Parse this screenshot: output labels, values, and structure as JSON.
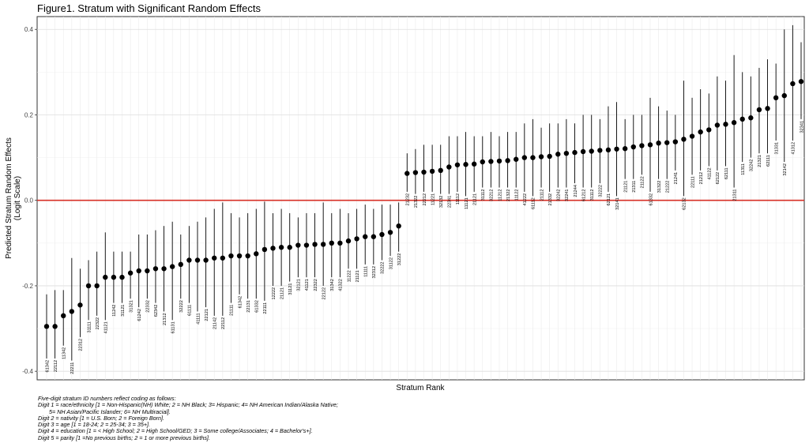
{
  "title": "Figure1. Stratum with Significant Random Effects",
  "caption": [
    "Five-digit stratum ID numbers reflect coding as follows:",
    "Digit 1 = race/ethnicity [1 = Non-Hispanic(NH) White; 2 = NH Black; 3= Hispanic; 4= NH American Indian/Alaska Native;",
    "5= NH Asian/Pacific Islander; 6= NH Multiracial].",
    "Digit 2 = nativity [1 = U.S. Born; 2 = Foreign Born].",
    "Digit 3 = age [1 = 18-24; 2 = 25-34; 3 = 35+].",
    "Digit 4 = education [1 = < High School; 2 = High School/GED; 3 = Some college/Associates; 4 = Bachelor's+].",
    "Digit 5 = parity [1 =No previous births; 2 = 1 or more previous births]."
  ],
  "chart_data": {
    "type": "scatter",
    "title": "Figure1. Stratum with Significant Random Effects",
    "xlabel": "Stratum Rank",
    "ylabel": "Predicted Stratum Random Effects (Logit Scale)",
    "ylabel_lines": [
      "Predicted Stratum Random Effects",
      "(Logit Scale)"
    ],
    "ylim": [
      -0.42,
      0.43
    ],
    "yticks": [
      -0.4,
      -0.2,
      0.0,
      0.2,
      0.4
    ],
    "ytick_labels": [
      "-0.4",
      "-0.2",
      "0.0",
      "0.2",
      "0.4"
    ],
    "grid": true,
    "reference_line": {
      "y": 0,
      "color": "#d73027"
    },
    "point_color": "#000000",
    "points": [
      {
        "id": "61342",
        "y": -0.295,
        "lo": -0.37,
        "hi": -0.22
      },
      {
        "id": "22112",
        "y": -0.295,
        "lo": -0.37,
        "hi": -0.21
      },
      {
        "id": "11342",
        "y": -0.27,
        "lo": -0.34,
        "hi": -0.21
      },
      {
        "id": "22211",
        "y": -0.26,
        "lo": -0.375,
        "hi": -0.135
      },
      {
        "id": "22312",
        "y": -0.245,
        "lo": -0.32,
        "hi": -0.16
      },
      {
        "id": "31111",
        "y": -0.2,
        "lo": -0.28,
        "hi": -0.14
      },
      {
        "id": "22322",
        "y": -0.2,
        "lo": -0.27,
        "hi": -0.12
      },
      {
        "id": "41121",
        "y": -0.18,
        "lo": -0.28,
        "hi": -0.075
      },
      {
        "id": "11242",
        "y": -0.18,
        "lo": -0.24,
        "hi": -0.12
      },
      {
        "id": "31121",
        "y": -0.18,
        "lo": -0.24,
        "hi": -0.12
      },
      {
        "id": "31321",
        "y": -0.17,
        "lo": -0.23,
        "hi": -0.12
      },
      {
        "id": "61242",
        "y": -0.165,
        "lo": -0.25,
        "hi": -0.08
      },
      {
        "id": "22332",
        "y": -0.165,
        "lo": -0.23,
        "hi": -0.08
      },
      {
        "id": "62342",
        "y": -0.16,
        "lo": -0.24,
        "hi": -0.07
      },
      {
        "id": "21312",
        "y": -0.16,
        "lo": -0.26,
        "hi": -0.06
      },
      {
        "id": "61131",
        "y": -0.155,
        "lo": -0.28,
        "hi": -0.05
      },
      {
        "id": "32222",
        "y": -0.15,
        "lo": -0.23,
        "hi": -0.08
      },
      {
        "id": "61111",
        "y": -0.14,
        "lo": -0.24,
        "hi": -0.06
      },
      {
        "id": "41111",
        "y": -0.14,
        "lo": -0.26,
        "hi": -0.05
      },
      {
        "id": "22121",
        "y": -0.14,
        "lo": -0.25,
        "hi": -0.04
      },
      {
        "id": "21142",
        "y": -0.135,
        "lo": -0.27,
        "hi": -0.02
      },
      {
        "id": "22112",
        "y": -0.135,
        "lo": -0.27,
        "hi": -0.005
      },
      {
        "id": "21111",
        "y": -0.13,
        "lo": -0.24,
        "hi": -0.03
      },
      {
        "id": "61342",
        "y": -0.13,
        "lo": -0.22,
        "hi": -0.04
      },
      {
        "id": "22131",
        "y": -0.13,
        "lo": -0.23,
        "hi": -0.03
      },
      {
        "id": "61332",
        "y": -0.125,
        "lo": -0.23,
        "hi": -0.02
      },
      {
        "id": "22111",
        "y": -0.115,
        "lo": -0.235,
        "hi": -0.003
      },
      {
        "id": "12222",
        "y": -0.112,
        "lo": -0.2,
        "hi": -0.03
      },
      {
        "id": "21121",
        "y": -0.11,
        "lo": -0.2,
        "hi": -0.02
      },
      {
        "id": "31121",
        "y": -0.11,
        "lo": -0.19,
        "hi": -0.03
      },
      {
        "id": "32121",
        "y": -0.105,
        "lo": -0.18,
        "hi": -0.04
      },
      {
        "id": "41121",
        "y": -0.105,
        "lo": -0.18,
        "hi": -0.03
      },
      {
        "id": "22322",
        "y": -0.103,
        "lo": -0.18,
        "hi": -0.03
      },
      {
        "id": "22122",
        "y": -0.103,
        "lo": -0.2,
        "hi": -0.005
      },
      {
        "id": "31342",
        "y": -0.1,
        "lo": -0.18,
        "hi": -0.03
      },
      {
        "id": "41322",
        "y": -0.1,
        "lo": -0.18,
        "hi": -0.02
      },
      {
        "id": "11222",
        "y": -0.095,
        "lo": -0.16,
        "hi": -0.03
      },
      {
        "id": "21121",
        "y": -0.09,
        "lo": -0.16,
        "hi": -0.02
      },
      {
        "id": "11111",
        "y": -0.085,
        "lo": -0.15,
        "hi": -0.01
      },
      {
        "id": "32312",
        "y": -0.085,
        "lo": -0.15,
        "hi": -0.02
      },
      {
        "id": "32222",
        "y": -0.08,
        "lo": -0.14,
        "hi": -0.01
      },
      {
        "id": "31122",
        "y": -0.075,
        "lo": -0.13,
        "hi": -0.01
      },
      {
        "id": "31222",
        "y": -0.06,
        "lo": -0.12,
        "hi": -0.005
      },
      {
        "id": "21232",
        "y": 0.063,
        "lo": 0.02,
        "hi": 0.11
      },
      {
        "id": "21322",
        "y": 0.065,
        "lo": 0.015,
        "hi": 0.12
      },
      {
        "id": "22212",
        "y": 0.066,
        "lo": 0.02,
        "hi": 0.13
      },
      {
        "id": "11221",
        "y": 0.068,
        "lo": 0.02,
        "hi": 0.13
      },
      {
        "id": "32132",
        "y": 0.07,
        "lo": 0.015,
        "hi": 0.13
      },
      {
        "id": "22341",
        "y": 0.078,
        "lo": 0.015,
        "hi": 0.15
      },
      {
        "id": "11112",
        "y": 0.083,
        "lo": 0.02,
        "hi": 0.15
      },
      {
        "id": "11121",
        "y": 0.084,
        "lo": 0.01,
        "hi": 0.16
      },
      {
        "id": "21121",
        "y": 0.085,
        "lo": 0.02,
        "hi": 0.15
      },
      {
        "id": "31112",
        "y": 0.09,
        "lo": 0.03,
        "hi": 0.15
      },
      {
        "id": "32212",
        "y": 0.091,
        "lo": 0.03,
        "hi": 0.16
      },
      {
        "id": "11212",
        "y": 0.092,
        "lo": 0.03,
        "hi": 0.15
      },
      {
        "id": "21322",
        "y": 0.093,
        "lo": 0.03,
        "hi": 0.16
      },
      {
        "id": "11122",
        "y": 0.096,
        "lo": 0.03,
        "hi": 0.16
      },
      {
        "id": "41222",
        "y": 0.1,
        "lo": 0.02,
        "hi": 0.18
      },
      {
        "id": "61112",
        "y": 0.1,
        "lo": 0.01,
        "hi": 0.19
      },
      {
        "id": "21112",
        "y": 0.102,
        "lo": 0.03,
        "hi": 0.17
      },
      {
        "id": "21332",
        "y": 0.103,
        "lo": 0.02,
        "hi": 0.18
      },
      {
        "id": "32242",
        "y": 0.108,
        "lo": 0.03,
        "hi": 0.18
      },
      {
        "id": "32241",
        "y": 0.11,
        "lo": 0.03,
        "hi": 0.19
      },
      {
        "id": "21244",
        "y": 0.112,
        "lo": 0.04,
        "hi": 0.18
      },
      {
        "id": "61212",
        "y": 0.114,
        "lo": 0.03,
        "hi": 0.2
      },
      {
        "id": "31112",
        "y": 0.115,
        "lo": 0.03,
        "hi": 0.2
      },
      {
        "id": "32222",
        "y": 0.117,
        "lo": 0.04,
        "hi": 0.19
      },
      {
        "id": "62121",
        "y": 0.118,
        "lo": 0.02,
        "hi": 0.22
      },
      {
        "id": "32141",
        "y": 0.12,
        "lo": 0.01,
        "hi": 0.23
      },
      {
        "id": "21121",
        "y": 0.121,
        "lo": 0.05,
        "hi": 0.19
      },
      {
        "id": "21311",
        "y": 0.125,
        "lo": 0.05,
        "hi": 0.2
      },
      {
        "id": "21122",
        "y": 0.128,
        "lo": 0.06,
        "hi": 0.2
      },
      {
        "id": "61332",
        "y": 0.13,
        "lo": 0.02,
        "hi": 0.24
      },
      {
        "id": "31322",
        "y": 0.134,
        "lo": 0.05,
        "hi": 0.22
      },
      {
        "id": "21222",
        "y": 0.135,
        "lo": 0.05,
        "hi": 0.21
      },
      {
        "id": "21241",
        "y": 0.137,
        "lo": 0.07,
        "hi": 0.2
      },
      {
        "id": "62132",
        "y": 0.143,
        "lo": 0.01,
        "hi": 0.28
      },
      {
        "id": "22111",
        "y": 0.15,
        "lo": 0.06,
        "hi": 0.24
      },
      {
        "id": "21212",
        "y": 0.16,
        "lo": 0.07,
        "hi": 0.26
      },
      {
        "id": "41122",
        "y": 0.165,
        "lo": 0.08,
        "hi": 0.25
      },
      {
        "id": "62122",
        "y": 0.176,
        "lo": 0.07,
        "hi": 0.29
      },
      {
        "id": "62111",
        "y": 0.178,
        "lo": 0.08,
        "hi": 0.28
      },
      {
        "id": "21311",
        "y": 0.182,
        "lo": 0.03,
        "hi": 0.34
      },
      {
        "id": "11311",
        "y": 0.19,
        "lo": 0.09,
        "hi": 0.3
      },
      {
        "id": "32242",
        "y": 0.193,
        "lo": 0.1,
        "hi": 0.29
      },
      {
        "id": "21321",
        "y": 0.212,
        "lo": 0.11,
        "hi": 0.31
      },
      {
        "id": "62111",
        "y": 0.215,
        "lo": 0.11,
        "hi": 0.33
      },
      {
        "id": "31331",
        "y": 0.24,
        "lo": 0.14,
        "hi": 0.32
      },
      {
        "id": "32142",
        "y": 0.245,
        "lo": 0.09,
        "hi": 0.4
      },
      {
        "id": "41312",
        "y": 0.273,
        "lo": 0.14,
        "hi": 0.41
      },
      {
        "id": "32341",
        "y": 0.278,
        "lo": 0.19,
        "hi": 0.37
      }
    ]
  }
}
